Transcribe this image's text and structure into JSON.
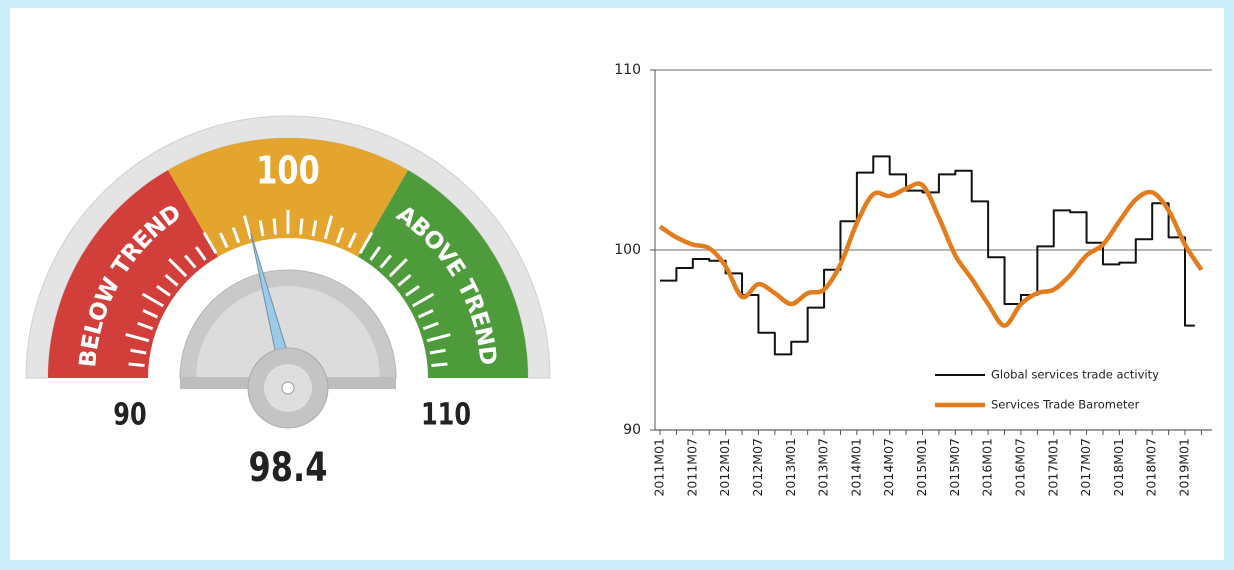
{
  "chart_data": [
    {
      "type": "gauge",
      "value": 98.4,
      "range": [
        90,
        110
      ],
      "ticks": [
        90,
        100,
        110
      ],
      "zones": [
        {
          "label": "BELOW TREND",
          "color": "#d23f3a"
        },
        {
          "color": "#e3a52d"
        },
        {
          "label": "ABOVE TREND",
          "color": "#4e9b3b"
        }
      ],
      "needle_color": "#9ccbea"
    },
    {
      "type": "line",
      "categories": [
        "2011M01",
        null,
        "2011M07",
        null,
        "2012M01",
        null,
        "2012M07",
        null,
        "2013M01",
        null,
        "2013M07",
        null,
        "2014M01",
        null,
        "2014M07",
        null,
        "2015M01",
        null,
        "2015M07",
        null,
        "2016M01",
        null,
        "2016M07",
        null,
        "2017M01",
        null,
        "2017M07",
        null,
        "2018M01",
        null,
        "2018M07",
        null,
        "2019M01",
        null
      ],
      "series": [
        {
          "name": "Global services trade activity",
          "color": "#111111",
          "style": "step",
          "values": [
            98.3,
            99.0,
            99.5,
            99.4,
            98.7,
            97.5,
            95.4,
            94.2,
            94.9,
            96.8,
            98.9,
            101.6,
            104.3,
            105.2,
            104.2,
            103.3,
            103.2,
            104.2,
            104.4,
            102.7,
            99.6,
            97.0,
            97.5,
            100.2,
            102.2,
            102.1,
            100.4,
            99.2,
            99.3,
            100.6,
            102.6,
            100.7,
            95.8,
            null
          ]
        },
        {
          "name": "Services Trade Barometer",
          "color": "#e37c1c",
          "style": "smooth",
          "values": [
            101.3,
            100.7,
            100.3,
            100.1,
            99.1,
            97.4,
            98.1,
            97.6,
            97.0,
            97.6,
            97.8,
            99.2,
            101.5,
            103.1,
            103.0,
            103.4,
            103.6,
            101.8,
            99.7,
            98.4,
            97.0,
            95.8,
            97.0,
            97.6,
            97.8,
            98.6,
            99.7,
            100.3,
            101.6,
            102.8,
            103.2,
            102.2,
            100.3,
            98.9
          ]
        }
      ],
      "ylim": [
        90,
        110
      ],
      "yticks": [
        90,
        100,
        110
      ],
      "grid": true,
      "legend": "lower right"
    }
  ]
}
